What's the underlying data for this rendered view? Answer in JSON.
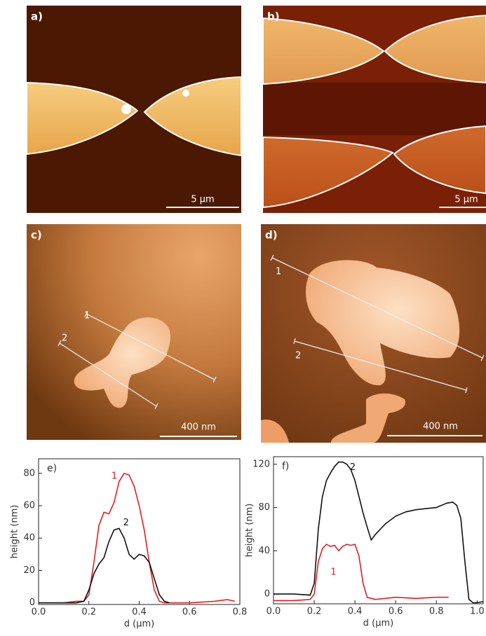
{
  "panels": [
    {
      "label": "a)",
      "scale_bar": "5 µm"
    },
    {
      "label": "b)",
      "scale_bar": "5 µm"
    },
    {
      "label": "c)",
      "scale_bar": "400 nm",
      "profiles": [
        "1",
        "2"
      ]
    },
    {
      "label": "d)",
      "scale_bar": "400 nm",
      "profiles": [
        "1",
        "2"
      ]
    }
  ],
  "chart_data": [
    {
      "type": "line",
      "label": "e)",
      "xlabel": "d (µm)",
      "ylabel": "height (nm)",
      "xlim": [
        0,
        0.8
      ],
      "ylim": [
        -1,
        89
      ],
      "xticks": [
        {
          "value": 0,
          "label": "0.0"
        },
        0.2,
        0.4,
        0.6,
        0.8
      ],
      "yticks": [
        0,
        20,
        40,
        60,
        80
      ],
      "series": [
        {
          "name": "1",
          "color": "#e02020",
          "x": [
            0,
            0.1,
            0.15,
            0.18,
            0.2,
            0.22,
            0.24,
            0.26,
            0.28,
            0.3,
            0.32,
            0.34,
            0.36,
            0.38,
            0.4,
            0.42,
            0.44,
            0.46,
            0.48,
            0.5,
            0.6,
            0.7,
            0.75,
            0.78
          ],
          "values": [
            0,
            0,
            1,
            1,
            5,
            25,
            48,
            56,
            55,
            62,
            75,
            80,
            79,
            72,
            60,
            45,
            25,
            8,
            1,
            0,
            0,
            1,
            2,
            1
          ]
        },
        {
          "name": "2",
          "color": "#111111",
          "x": [
            0,
            0.15,
            0.18,
            0.2,
            0.22,
            0.24,
            0.26,
            0.28,
            0.3,
            0.32,
            0.34,
            0.36,
            0.38,
            0.4,
            0.42,
            0.44,
            0.46,
            0.48,
            0.5,
            0.52
          ],
          "values": [
            0,
            0,
            1,
            8,
            18,
            24,
            28,
            38,
            45,
            46,
            40,
            30,
            27,
            30,
            29,
            25,
            15,
            5,
            1,
            0
          ]
        }
      ]
    },
    {
      "type": "line",
      "label": "f)",
      "xlabel": "d (µm)",
      "ylabel": "height (nm)",
      "xlim": [
        0,
        1.03
      ],
      "ylim": [
        -9,
        127
      ],
      "xticks": [
        {
          "value": 0,
          "label": "0.0"
        },
        0.2,
        0.4,
        0.6,
        0.8,
        {
          "value": 1,
          "label": "1.0"
        }
      ],
      "yticks": [
        0,
        40,
        80,
        120
      ],
      "series": [
        {
          "name": "1",
          "color": "#e02020",
          "x": [
            0,
            0.1,
            0.18,
            0.2,
            0.22,
            0.24,
            0.26,
            0.28,
            0.3,
            0.32,
            0.34,
            0.36,
            0.38,
            0.4,
            0.42,
            0.44,
            0.46,
            0.5,
            0.6,
            0.7,
            0.8,
            0.86
          ],
          "values": [
            -6,
            -6,
            -5,
            0,
            30,
            42,
            46,
            44,
            45,
            40,
            44,
            46,
            45,
            46,
            35,
            10,
            -3,
            -5,
            -3,
            -4,
            -3,
            -3
          ]
        },
        {
          "name": "2",
          "color": "#111111",
          "x": [
            0,
            0.1,
            0.18,
            0.2,
            0.22,
            0.24,
            0.26,
            0.28,
            0.3,
            0.32,
            0.34,
            0.36,
            0.38,
            0.4,
            0.42,
            0.44,
            0.46,
            0.48,
            0.5,
            0.55,
            0.6,
            0.65,
            0.7,
            0.75,
            0.8,
            0.85,
            0.88,
            0.9,
            0.92,
            0.94,
            0.96,
            0.98,
            1.0,
            1.03
          ],
          "values": [
            0,
            0,
            -1,
            10,
            60,
            90,
            105,
            112,
            118,
            122,
            122,
            120,
            115,
            105,
            90,
            75,
            62,
            50,
            55,
            65,
            72,
            76,
            78,
            79,
            80,
            84,
            85,
            82,
            70,
            30,
            -5,
            -8,
            -8,
            -7
          ]
        }
      ]
    }
  ]
}
